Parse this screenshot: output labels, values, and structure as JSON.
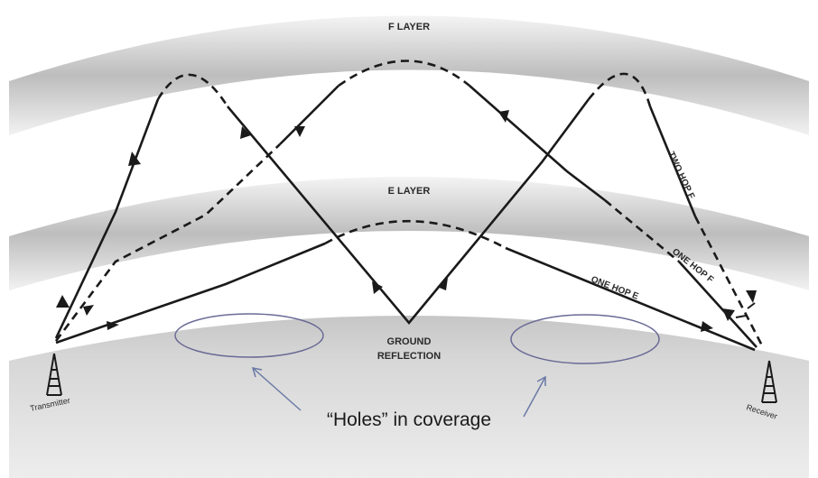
{
  "layers": {
    "f_layer": "F LAYER",
    "e_layer": "E LAYER"
  },
  "ground": {
    "reflection_line1": "GROUND",
    "reflection_line2": "REFLECTION"
  },
  "paths": {
    "two_hop_f": "TWO HOP F",
    "one_hop_f": "ONE HOP F",
    "one_hop_e": "ONE HOP E"
  },
  "stations": {
    "transmitter": "Transmitter",
    "receiver": "Receiver"
  },
  "annotation": {
    "holes_caption": "“Holes” in coverage"
  },
  "colors": {
    "ellipse_outline": "#6a6a96",
    "arrow_annotation": "#6a7aa6"
  }
}
